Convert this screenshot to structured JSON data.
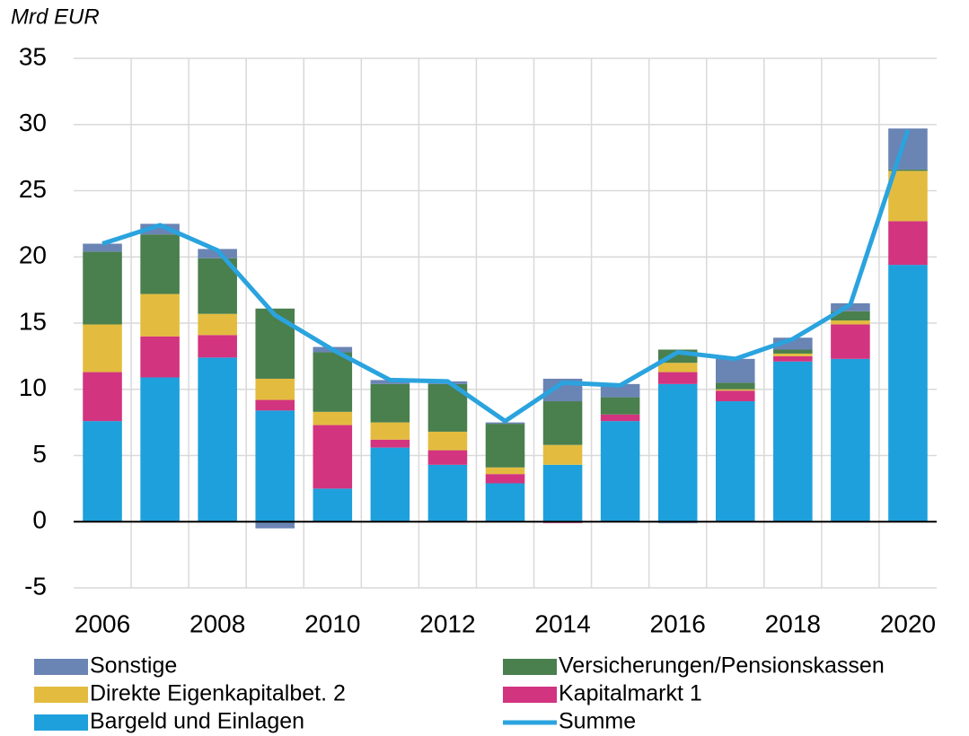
{
  "chart_data": {
    "type": "bar",
    "stacked": true,
    "y_label": "Mrd EUR",
    "categories": [
      "2006",
      null,
      "2008",
      null,
      "2010",
      null,
      "2012",
      null,
      "2014",
      null,
      "2016",
      null,
      "2018",
      null,
      "2020"
    ],
    "series": [
      {
        "name": "Sonstige",
        "color": "#6a84b4",
        "values": [
          0.6,
          0.8,
          0.7,
          -0.5,
          0.4,
          0.3,
          0.2,
          0.1,
          1.7,
          1.0,
          -0.1,
          1.8,
          0.9,
          0.6,
          3.1
        ]
      },
      {
        "name": "Versicherungen/Pensionskassen",
        "color": "#4a7f4e",
        "values": [
          5.5,
          4.5,
          4.2,
          5.3,
          4.5,
          2.9,
          3.6,
          3.3,
          3.3,
          1.3,
          1.0,
          0.5,
          0.3,
          0.7,
          0.1
        ]
      },
      {
        "name": "Direkte Eigenkapitalbet. 2",
        "color": "#e3bc3f",
        "values": [
          3.6,
          3.2,
          1.6,
          1.6,
          1.0,
          1.3,
          1.4,
          0.5,
          1.5,
          0,
          0.7,
          0.1,
          0.2,
          0.3,
          3.8
        ]
      },
      {
        "name": "Kapitalmarkt 1",
        "color": "#d2347f",
        "values": [
          3.7,
          3.1,
          1.7,
          0.8,
          4.8,
          0.6,
          1.1,
          0.7,
          -0.1,
          0.5,
          0.9,
          0.8,
          0.4,
          2.6,
          3.3
        ]
      },
      {
        "name": "Bargeld und Einlagen",
        "color": "#1ea0dc",
        "values": [
          7.6,
          10.9,
          12.4,
          8.4,
          2.5,
          5.6,
          4.3,
          2.9,
          4.3,
          7.6,
          10.4,
          9.1,
          12.1,
          12.3,
          19.4
        ]
      },
      {
        "name": "Summe",
        "type": "line",
        "color": "#2aa3de",
        "values": [
          21.0,
          22.4,
          20.5,
          15.6,
          13.0,
          10.7,
          10.6,
          7.6,
          10.5,
          10.3,
          12.8,
          12.3,
          13.8,
          16.4,
          29.6
        ]
      }
    ],
    "ylim": [
      -5,
      35
    ],
    "yticks": [
      -5,
      0,
      5,
      10,
      15,
      20,
      25,
      30,
      35
    ],
    "grid": true
  }
}
